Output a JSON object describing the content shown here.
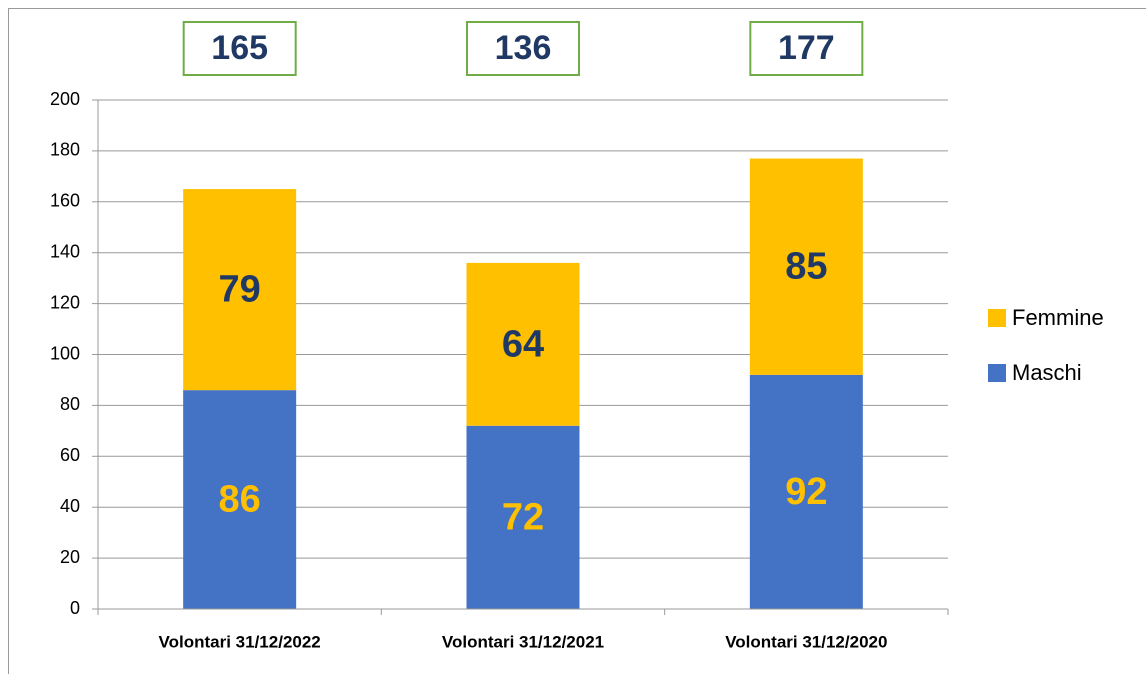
{
  "chart_data": {
    "type": "stacked_bar",
    "categories": [
      "Volontari 31/12/2022",
      "Volontari 31/12/2021",
      "Volontari 31/12/2020"
    ],
    "series": [
      {
        "name": "Maschi",
        "color": "#4472c4",
        "label_color": "#ffc000",
        "values": [
          86,
          72,
          92
        ]
      },
      {
        "name": "Femmine",
        "color": "#ffc000",
        "label_color": "#1f3864",
        "values": [
          79,
          64,
          85
        ]
      }
    ],
    "totals": [
      165,
      136,
      177
    ],
    "ylim": [
      0,
      200
    ],
    "yticks": [
      0,
      20,
      40,
      60,
      80,
      100,
      120,
      140,
      160,
      180,
      200
    ],
    "grid": true,
    "legend": "right"
  }
}
